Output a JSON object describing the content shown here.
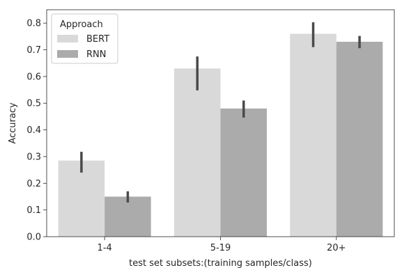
{
  "chart_data": {
    "type": "bar",
    "categories": [
      "1-4",
      "5-19",
      "20+"
    ],
    "series": [
      {
        "name": "BERT",
        "color": "#d9d9d9",
        "values": [
          0.285,
          0.63,
          0.76
        ],
        "error_low": [
          0.24,
          0.548,
          0.71
        ],
        "error_high": [
          0.318,
          0.675,
          0.803
        ]
      },
      {
        "name": "RNN",
        "color": "#ababab",
        "values": [
          0.15,
          0.48,
          0.73
        ],
        "error_low": [
          0.128,
          0.446,
          0.706
        ],
        "error_high": [
          0.17,
          0.51,
          0.752
        ]
      }
    ],
    "error_bar_color": "#4a4a4a",
    "xlabel": "test set subsets:(training samples/class)",
    "ylabel": "Accuracy",
    "ylim": [
      0.0,
      0.85
    ],
    "yticks": [
      0.0,
      0.1,
      0.2,
      0.3,
      0.4,
      0.5,
      0.6,
      0.7,
      0.8
    ],
    "ytick_labels": [
      "0.0",
      "0.1",
      "0.2",
      "0.3",
      "0.4",
      "0.5",
      "0.6",
      "0.7",
      "0.8"
    ],
    "grid": false,
    "legend": {
      "title": "Approach",
      "placement": "top-left",
      "entries": [
        "BERT",
        "RNN"
      ]
    }
  }
}
